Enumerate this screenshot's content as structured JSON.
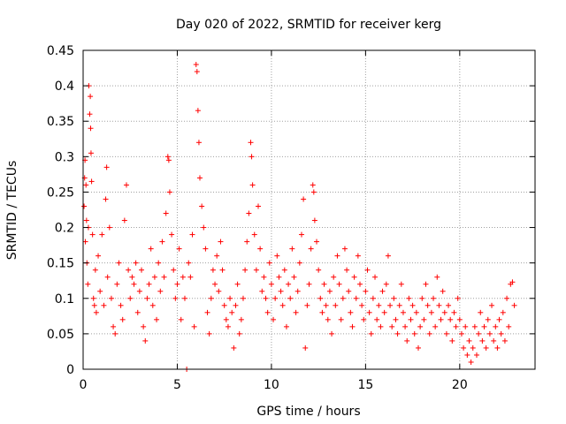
{
  "chart_data": {
    "type": "scatter",
    "title": "Day 020 of 2022, SRMTID for receiver kerg",
    "xlabel": "GPS time / hours",
    "ylabel": "SRMTID / TECUs",
    "xlim": [
      0,
      24
    ],
    "ylim": [
      0,
      0.45
    ],
    "xticks": [
      0,
      5,
      10,
      15,
      20
    ],
    "xtick_labels": [
      "0",
      "5",
      "10",
      "15",
      "20"
    ],
    "yticks": [
      0,
      0.05,
      0.1,
      0.15,
      0.2,
      0.25,
      0.3,
      0.35,
      0.4,
      0.45
    ],
    "ytick_labels": [
      "0",
      "0.05",
      "0.1",
      "0.15",
      "0.2",
      "0.25",
      "0.3",
      "0.35",
      "0.4",
      "0.45"
    ],
    "grid": true,
    "marker": "+",
    "series": [
      {
        "name": "SRMTID",
        "color": "#ff0000",
        "points": [
          [
            0.05,
            0.23
          ],
          [
            0.08,
            0.27
          ],
          [
            0.1,
            0.295
          ],
          [
            0.12,
            0.18
          ],
          [
            0.15,
            0.26
          ],
          [
            0.18,
            0.21
          ],
          [
            0.2,
            0.15
          ],
          [
            0.25,
            0.12
          ],
          [
            0.28,
            0.2
          ],
          [
            0.3,
            0.4
          ],
          [
            0.35,
            0.36
          ],
          [
            0.38,
            0.385
          ],
          [
            0.4,
            0.34
          ],
          [
            0.42,
            0.305
          ],
          [
            0.45,
            0.265
          ],
          [
            0.5,
            0.19
          ],
          [
            0.55,
            0.1
          ],
          [
            0.6,
            0.09
          ],
          [
            0.65,
            0.14
          ],
          [
            0.7,
            0.08
          ],
          [
            0.8,
            0.16
          ],
          [
            0.9,
            0.11
          ],
          [
            1.0,
            0.19
          ],
          [
            1.1,
            0.09
          ],
          [
            1.2,
            0.24
          ],
          [
            1.25,
            0.285
          ],
          [
            1.3,
            0.13
          ],
          [
            1.4,
            0.2
          ],
          [
            1.5,
            0.1
          ],
          [
            1.6,
            0.06
          ],
          [
            1.7,
            0.05
          ],
          [
            1.8,
            0.12
          ],
          [
            1.9,
            0.15
          ],
          [
            2.0,
            0.09
          ],
          [
            2.1,
            0.07
          ],
          [
            2.2,
            0.21
          ],
          [
            2.3,
            0.26
          ],
          [
            2.4,
            0.14
          ],
          [
            2.5,
            0.1
          ],
          [
            2.6,
            0.13
          ],
          [
            2.7,
            0.12
          ],
          [
            2.8,
            0.15
          ],
          [
            2.9,
            0.08
          ],
          [
            3.0,
            0.11
          ],
          [
            3.1,
            0.14
          ],
          [
            3.2,
            0.06
          ],
          [
            3.3,
            0.04
          ],
          [
            3.4,
            0.1
          ],
          [
            3.5,
            0.12
          ],
          [
            3.6,
            0.17
          ],
          [
            3.7,
            0.09
          ],
          [
            3.8,
            0.13
          ],
          [
            3.9,
            0.07
          ],
          [
            4.0,
            0.15
          ],
          [
            4.1,
            0.11
          ],
          [
            4.2,
            0.18
          ],
          [
            4.3,
            0.13
          ],
          [
            4.4,
            0.22
          ],
          [
            4.5,
            0.3
          ],
          [
            4.55,
            0.295
          ],
          [
            4.6,
            0.25
          ],
          [
            4.7,
            0.19
          ],
          [
            4.8,
            0.14
          ],
          [
            4.9,
            0.1
          ],
          [
            5.0,
            0.12
          ],
          [
            5.1,
            0.17
          ],
          [
            5.2,
            0.07
          ],
          [
            5.3,
            0.13
          ],
          [
            5.4,
            0.1
          ],
          [
            5.5,
            0.0
          ],
          [
            5.6,
            0.15
          ],
          [
            5.7,
            0.13
          ],
          [
            5.8,
            0.19
          ],
          [
            5.9,
            0.06
          ],
          [
            6.0,
            0.43
          ],
          [
            6.05,
            0.42
          ],
          [
            6.1,
            0.365
          ],
          [
            6.15,
            0.32
          ],
          [
            6.2,
            0.27
          ],
          [
            6.3,
            0.23
          ],
          [
            6.4,
            0.2
          ],
          [
            6.5,
            0.17
          ],
          [
            6.6,
            0.08
          ],
          [
            6.7,
            0.05
          ],
          [
            6.8,
            0.1
          ],
          [
            6.9,
            0.14
          ],
          [
            7.0,
            0.12
          ],
          [
            7.1,
            0.16
          ],
          [
            7.2,
            0.11
          ],
          [
            7.3,
            0.18
          ],
          [
            7.4,
            0.14
          ],
          [
            7.5,
            0.09
          ],
          [
            7.6,
            0.07
          ],
          [
            7.7,
            0.06
          ],
          [
            7.8,
            0.1
          ],
          [
            7.9,
            0.08
          ],
          [
            8.0,
            0.03
          ],
          [
            8.1,
            0.09
          ],
          [
            8.2,
            0.12
          ],
          [
            8.3,
            0.05
          ],
          [
            8.4,
            0.07
          ],
          [
            8.5,
            0.1
          ],
          [
            8.6,
            0.14
          ],
          [
            8.7,
            0.18
          ],
          [
            8.8,
            0.22
          ],
          [
            8.9,
            0.32
          ],
          [
            8.95,
            0.3
          ],
          [
            9.0,
            0.26
          ],
          [
            9.1,
            0.19
          ],
          [
            9.2,
            0.14
          ],
          [
            9.3,
            0.23
          ],
          [
            9.4,
            0.17
          ],
          [
            9.5,
            0.11
          ],
          [
            9.6,
            0.13
          ],
          [
            9.7,
            0.1
          ],
          [
            9.8,
            0.08
          ],
          [
            9.9,
            0.15
          ],
          [
            10.0,
            0.12
          ],
          [
            10.1,
            0.07
          ],
          [
            10.2,
            0.1
          ],
          [
            10.3,
            0.16
          ],
          [
            10.4,
            0.13
          ],
          [
            10.5,
            0.11
          ],
          [
            10.6,
            0.09
          ],
          [
            10.7,
            0.14
          ],
          [
            10.8,
            0.06
          ],
          [
            10.9,
            0.12
          ],
          [
            11.0,
            0.1
          ],
          [
            11.1,
            0.17
          ],
          [
            11.2,
            0.13
          ],
          [
            11.3,
            0.08
          ],
          [
            11.4,
            0.11
          ],
          [
            11.5,
            0.15
          ],
          [
            11.6,
            0.19
          ],
          [
            11.7,
            0.24
          ],
          [
            11.8,
            0.03
          ],
          [
            11.9,
            0.09
          ],
          [
            12.0,
            0.12
          ],
          [
            12.1,
            0.17
          ],
          [
            12.2,
            0.26
          ],
          [
            12.25,
            0.25
          ],
          [
            12.3,
            0.21
          ],
          [
            12.4,
            0.18
          ],
          [
            12.5,
            0.14
          ],
          [
            12.6,
            0.1
          ],
          [
            12.7,
            0.08
          ],
          [
            12.8,
            0.12
          ],
          [
            12.9,
            0.09
          ],
          [
            13.0,
            0.07
          ],
          [
            13.1,
            0.11
          ],
          [
            13.2,
            0.05
          ],
          [
            13.3,
            0.13
          ],
          [
            13.4,
            0.09
          ],
          [
            13.5,
            0.16
          ],
          [
            13.6,
            0.12
          ],
          [
            13.7,
            0.07
          ],
          [
            13.8,
            0.1
          ],
          [
            13.9,
            0.17
          ],
          [
            14.0,
            0.14
          ],
          [
            14.1,
            0.11
          ],
          [
            14.2,
            0.08
          ],
          [
            14.3,
            0.06
          ],
          [
            14.4,
            0.13
          ],
          [
            14.5,
            0.1
          ],
          [
            14.6,
            0.16
          ],
          [
            14.7,
            0.12
          ],
          [
            14.8,
            0.09
          ],
          [
            14.9,
            0.07
          ],
          [
            15.0,
            0.11
          ],
          [
            15.1,
            0.14
          ],
          [
            15.2,
            0.08
          ],
          [
            15.3,
            0.05
          ],
          [
            15.4,
            0.1
          ],
          [
            15.5,
            0.13
          ],
          [
            15.6,
            0.07
          ],
          [
            15.7,
            0.09
          ],
          [
            15.8,
            0.06
          ],
          [
            15.9,
            0.11
          ],
          [
            16.0,
            0.08
          ],
          [
            16.1,
            0.12
          ],
          [
            16.2,
            0.16
          ],
          [
            16.3,
            0.09
          ],
          [
            16.4,
            0.06
          ],
          [
            16.5,
            0.1
          ],
          [
            16.6,
            0.07
          ],
          [
            16.7,
            0.05
          ],
          [
            16.8,
            0.09
          ],
          [
            16.9,
            0.12
          ],
          [
            17.0,
            0.08
          ],
          [
            17.1,
            0.06
          ],
          [
            17.2,
            0.04
          ],
          [
            17.3,
            0.1
          ],
          [
            17.4,
            0.07
          ],
          [
            17.5,
            0.09
          ],
          [
            17.6,
            0.05
          ],
          [
            17.7,
            0.08
          ],
          [
            17.8,
            0.03
          ],
          [
            17.9,
            0.06
          ],
          [
            18.0,
            0.1
          ],
          [
            18.1,
            0.07
          ],
          [
            18.2,
            0.12
          ],
          [
            18.3,
            0.09
          ],
          [
            18.4,
            0.05
          ],
          [
            18.5,
            0.08
          ],
          [
            18.6,
            0.1
          ],
          [
            18.7,
            0.06
          ],
          [
            18.8,
            0.13
          ],
          [
            18.9,
            0.09
          ],
          [
            19.0,
            0.07
          ],
          [
            19.1,
            0.11
          ],
          [
            19.2,
            0.08
          ],
          [
            19.3,
            0.05
          ],
          [
            19.4,
            0.09
          ],
          [
            19.5,
            0.07
          ],
          [
            19.6,
            0.04
          ],
          [
            19.7,
            0.08
          ],
          [
            19.8,
            0.06
          ],
          [
            19.9,
            0.1
          ],
          [
            20.0,
            0.07
          ],
          [
            20.1,
            0.05
          ],
          [
            20.2,
            0.03
          ],
          [
            20.3,
            0.06
          ],
          [
            20.4,
            0.02
          ],
          [
            20.5,
            0.04
          ],
          [
            20.6,
            0.01
          ],
          [
            20.7,
            0.03
          ],
          [
            20.8,
            0.06
          ],
          [
            20.9,
            0.02
          ],
          [
            21.0,
            0.05
          ],
          [
            21.1,
            0.08
          ],
          [
            21.2,
            0.04
          ],
          [
            21.3,
            0.06
          ],
          [
            21.4,
            0.03
          ],
          [
            21.5,
            0.07
          ],
          [
            21.6,
            0.05
          ],
          [
            21.7,
            0.09
          ],
          [
            21.8,
            0.04
          ],
          [
            21.9,
            0.06
          ],
          [
            22.0,
            0.03
          ],
          [
            22.1,
            0.07
          ],
          [
            22.2,
            0.05
          ],
          [
            22.3,
            0.08
          ],
          [
            22.4,
            0.04
          ],
          [
            22.5,
            0.1
          ],
          [
            22.6,
            0.06
          ],
          [
            22.7,
            0.12
          ],
          [
            22.8,
            0.123
          ],
          [
            22.9,
            0.09
          ]
        ]
      }
    ]
  }
}
